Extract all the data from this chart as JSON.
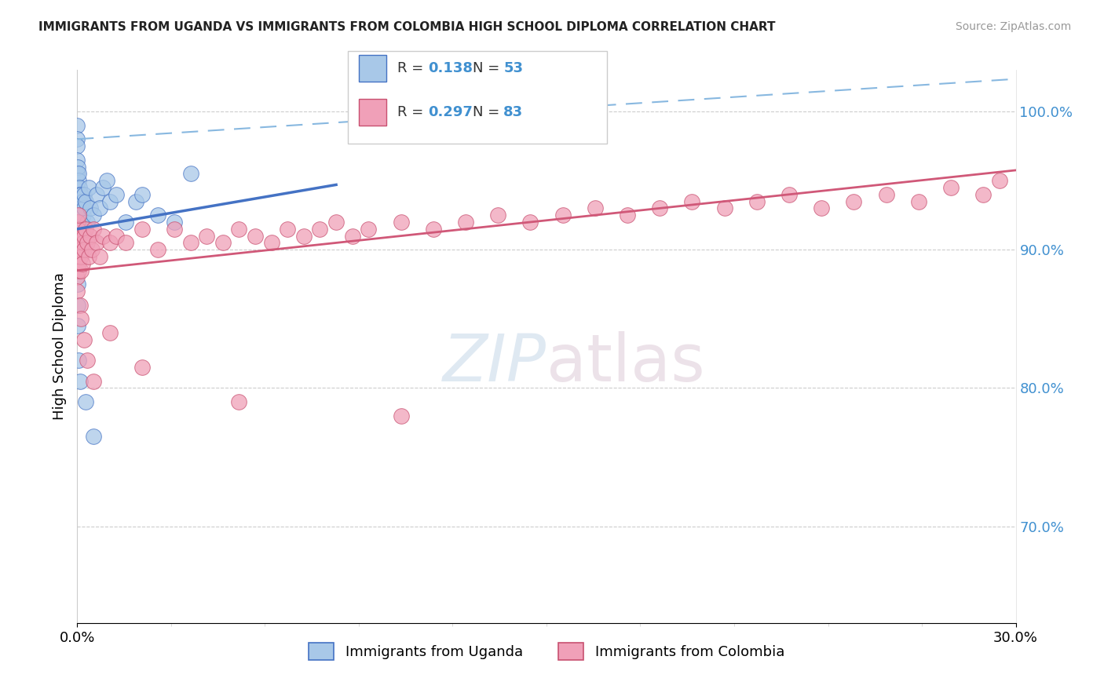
{
  "title": "IMMIGRANTS FROM UGANDA VS IMMIGRANTS FROM COLOMBIA HIGH SCHOOL DIPLOMA CORRELATION CHART",
  "source": "Source: ZipAtlas.com",
  "ylabel": "High School Diploma",
  "legend_uganda": "Immigrants from Uganda",
  "legend_colombia": "Immigrants from Colombia",
  "r_uganda": 0.138,
  "n_uganda": 53,
  "r_colombia": 0.297,
  "n_colombia": 83,
  "color_uganda_fill": "#a8c8e8",
  "color_uganda_edge": "#4472c4",
  "color_colombia_fill": "#f0a0b8",
  "color_colombia_edge": "#c85070",
  "color_trendline_uganda": "#4472c4",
  "color_trendline_colombia": "#d05878",
  "color_dashed": "#88b8e0",
  "color_right_ticks": "#4090d0",
  "xlim": [
    0,
    29
  ],
  "ylim": [
    63,
    103
  ],
  "right_yticks": [
    70,
    80,
    90,
    100
  ],
  "right_ytick_labels": [
    "70.0%",
    "80.0%",
    "90.0%",
    "100.0%"
  ],
  "xticklabels": [
    "0.0%",
    "30.0%"
  ],
  "uganda_x": [
    0.0,
    0.0,
    0.0,
    0.0,
    0.0,
    0.0,
    0.02,
    0.02,
    0.03,
    0.03,
    0.04,
    0.04,
    0.05,
    0.05,
    0.06,
    0.06,
    0.07,
    0.07,
    0.08,
    0.08,
    0.1,
    0.1,
    0.12,
    0.12,
    0.15,
    0.15,
    0.18,
    0.2,
    0.22,
    0.25,
    0.3,
    0.35,
    0.4,
    0.5,
    0.6,
    0.7,
    0.8,
    0.9,
    1.0,
    1.2,
    1.5,
    1.8,
    2.0,
    2.5,
    3.0,
    0.01,
    0.01,
    0.02,
    0.03,
    0.08,
    0.25,
    0.5,
    3.5
  ],
  "uganda_y": [
    99.0,
    98.0,
    97.5,
    96.5,
    95.5,
    94.5,
    96.0,
    94.0,
    95.0,
    93.5,
    94.0,
    92.5,
    95.5,
    93.0,
    94.5,
    92.0,
    93.5,
    91.5,
    94.0,
    92.5,
    93.0,
    91.5,
    94.0,
    92.0,
    93.5,
    91.0,
    92.5,
    93.0,
    94.0,
    93.5,
    92.0,
    94.5,
    93.0,
    92.5,
    94.0,
    93.0,
    94.5,
    95.0,
    93.5,
    94.0,
    92.0,
    93.5,
    94.0,
    92.5,
    92.0,
    87.5,
    86.0,
    84.5,
    82.0,
    80.5,
    79.0,
    76.5,
    95.5
  ],
  "colombia_x": [
    0.0,
    0.0,
    0.0,
    0.0,
    0.0,
    0.01,
    0.01,
    0.02,
    0.02,
    0.03,
    0.03,
    0.04,
    0.04,
    0.05,
    0.05,
    0.06,
    0.07,
    0.08,
    0.09,
    0.1,
    0.1,
    0.12,
    0.15,
    0.15,
    0.18,
    0.2,
    0.22,
    0.25,
    0.3,
    0.35,
    0.4,
    0.45,
    0.5,
    0.6,
    0.7,
    0.8,
    1.0,
    1.2,
    1.5,
    2.0,
    2.5,
    3.0,
    3.5,
    4.0,
    4.5,
    5.0,
    5.5,
    6.0,
    6.5,
    7.0,
    7.5,
    8.0,
    8.5,
    9.0,
    10.0,
    11.0,
    12.0,
    13.0,
    14.0,
    15.0,
    16.0,
    17.0,
    18.0,
    19.0,
    20.0,
    21.0,
    22.0,
    23.0,
    24.0,
    25.0,
    26.0,
    27.0,
    28.0,
    28.5,
    0.08,
    0.12,
    0.2,
    0.3,
    0.5,
    1.0,
    2.0,
    5.0,
    10.0
  ],
  "colombia_y": [
    91.0,
    90.0,
    89.5,
    88.0,
    87.0,
    92.0,
    90.5,
    91.5,
    89.5,
    90.0,
    88.5,
    91.0,
    89.0,
    92.5,
    90.0,
    91.0,
    90.5,
    89.5,
    91.0,
    90.0,
    88.5,
    89.5,
    91.0,
    89.0,
    90.5,
    91.0,
    90.0,
    91.5,
    90.5,
    89.5,
    91.0,
    90.0,
    91.5,
    90.5,
    89.5,
    91.0,
    90.5,
    91.0,
    90.5,
    91.5,
    90.0,
    91.5,
    90.5,
    91.0,
    90.5,
    91.5,
    91.0,
    90.5,
    91.5,
    91.0,
    91.5,
    92.0,
    91.0,
    91.5,
    92.0,
    91.5,
    92.0,
    92.5,
    92.0,
    92.5,
    93.0,
    92.5,
    93.0,
    93.5,
    93.0,
    93.5,
    94.0,
    93.0,
    93.5,
    94.0,
    93.5,
    94.5,
    94.0,
    95.0,
    86.0,
    85.0,
    83.5,
    82.0,
    80.5,
    84.0,
    81.5,
    79.0,
    78.0
  ]
}
